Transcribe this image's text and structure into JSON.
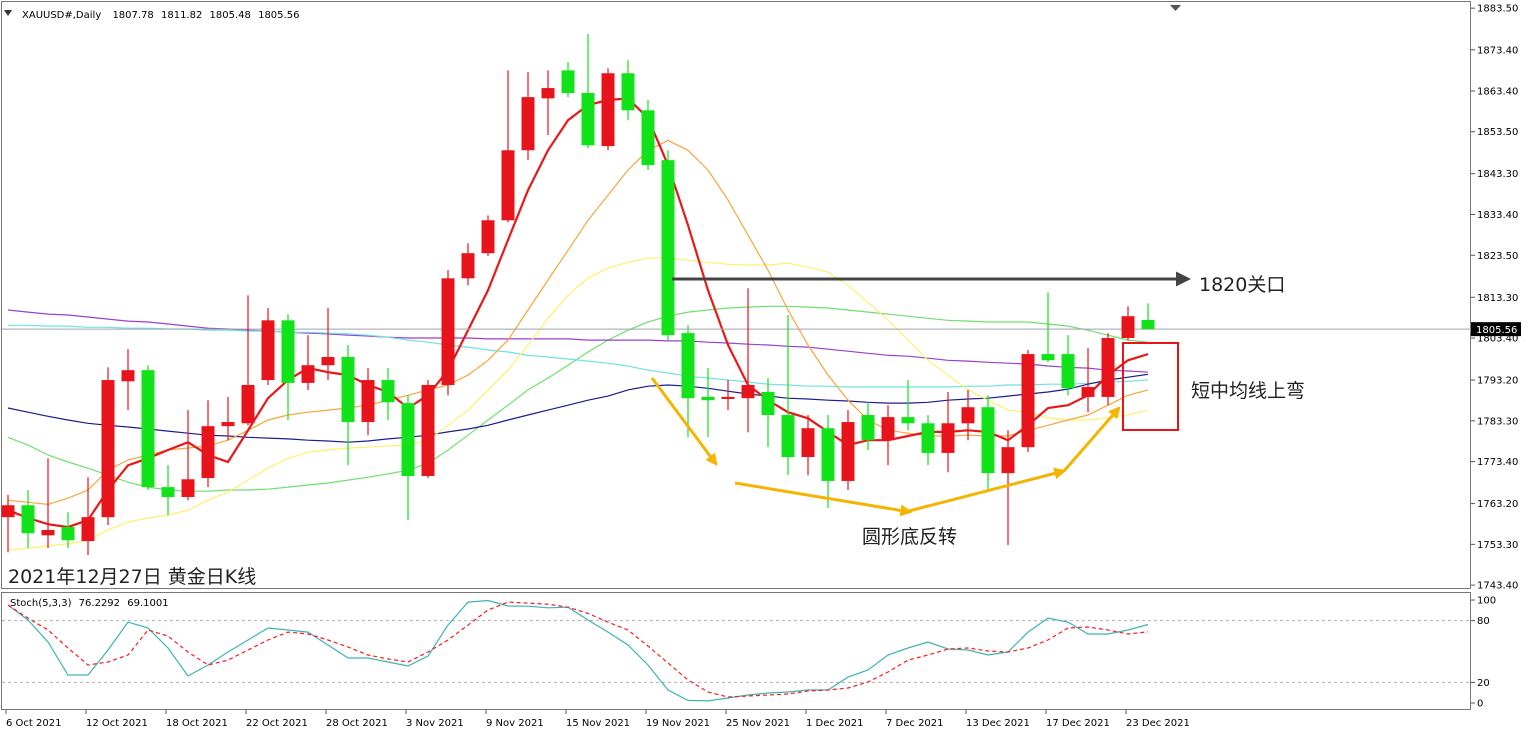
{
  "chart_data": {
    "type": "candlestick",
    "title": "XAUUSD#,Daily",
    "caption": "2021年12月27日 黄金日K线",
    "categories": [
      "6 Oct 2021",
      null,
      null,
      null,
      "12 Oct 2021",
      null,
      null,
      null,
      "18 Oct 2021",
      null,
      null,
      null,
      "22 Oct 2021",
      null,
      null,
      null,
      "28 Oct 2021",
      null,
      null,
      null,
      "3 Nov 2021",
      null,
      null,
      null,
      "9 Nov 2021",
      null,
      null,
      null,
      "15 Nov 2021",
      null,
      null,
      null,
      "19 Nov 2021",
      null,
      null,
      null,
      "25 Nov 2021",
      null,
      null,
      null,
      "1 Dec 2021",
      null,
      null,
      null,
      "7 Dec 2021",
      null,
      null,
      null,
      "13 Dec 2021",
      null,
      null,
      null,
      "17 Dec 2021",
      null,
      null,
      null,
      "23 Dec 2021",
      null
    ],
    "open": [
      1759.9,
      1762.8,
      1755.5,
      1757.5,
      1754.1,
      1759.9,
      1792.9,
      1795.6,
      1767.2,
      1764.8,
      1769.4,
      1782.0,
      1782.7,
      1793.2,
      1807.7,
      1792.5,
      1796.8,
      1798.8,
      1783.0,
      1793.2,
      1787.6,
      1769.9,
      1792.0,
      1817.9,
      1824.0,
      1832.0,
      1849.0,
      1861.6,
      1868.4,
      1862.9,
      1850.0,
      1867.7,
      1858.7,
      1846.6,
      1804.6,
      1789.1,
      1788.6,
      1788.8,
      1790.3,
      1784.7,
      1774.5,
      1781.5,
      1768.7,
      1784.7,
      1778.6,
      1784.2,
      1782.7,
      1775.5,
      1782.7,
      1786.6,
      1770.6,
      1776.9,
      1799.5,
      1799.5,
      1789.1,
      1789.1,
      1803.4,
      1807.78
    ],
    "high": [
      1765.3,
      1766.5,
      1774.2,
      1761.1,
      1769.6,
      1796.3,
      1800.7,
      1796.8,
      1772.5,
      1785.9,
      1788.3,
      1789.1,
      1813.8,
      1810.7,
      1809.2,
      1804.1,
      1810.7,
      1801.7,
      1796.1,
      1796.1,
      1789.5,
      1793.2,
      1819.9,
      1826.4,
      1833.2,
      1868.4,
      1868.0,
      1868.4,
      1870.4,
      1877.2,
      1868.9,
      1870.9,
      1861.2,
      1849.0,
      1806.5,
      1796.1,
      1793.2,
      1815.5,
      1793.7,
      1809.0,
      1784.7,
      1784.7,
      1785.9,
      1787.8,
      1787.1,
      1793.2,
      1784.7,
      1790.3,
      1790.8,
      1789.5,
      1781.0,
      1800.5,
      1814.5,
      1804.1,
      1801.0,
      1804.6,
      1811.1,
      1811.82
    ],
    "low": [
      1751.4,
      1752.4,
      1752.4,
      1752.4,
      1750.7,
      1758.0,
      1785.9,
      1766.5,
      1760.4,
      1764.0,
      1767.2,
      1778.6,
      1782.2,
      1792.0,
      1783.5,
      1790.8,
      1793.2,
      1772.5,
      1779.8,
      1783.5,
      1759.2,
      1769.4,
      1789.5,
      1816.2,
      1823.3,
      1831.5,
      1846.6,
      1852.7,
      1861.9,
      1849.5,
      1849.0,
      1856.3,
      1844.2,
      1802.9,
      1779.3,
      1779.3,
      1785.9,
      1780.5,
      1776.9,
      1770.1,
      1770.1,
      1762.1,
      1766.5,
      1776.2,
      1772.5,
      1781.0,
      1772.5,
      1770.8,
      1778.6,
      1766.5,
      1753.1,
      1775.7,
      1797.5,
      1789.5,
      1785.4,
      1787.1,
      1802.9,
      1805.48
    ],
    "close": [
      1762.8,
      1756.0,
      1756.8,
      1754.3,
      1759.9,
      1793.2,
      1795.6,
      1767.2,
      1764.8,
      1769.1,
      1782.0,
      1783.0,
      1792.0,
      1807.7,
      1792.5,
      1796.8,
      1798.8,
      1783.0,
      1793.2,
      1787.8,
      1769.9,
      1792.0,
      1817.9,
      1824.0,
      1832.0,
      1849.0,
      1861.9,
      1864.1,
      1862.9,
      1850.2,
      1867.7,
      1858.7,
      1845.4,
      1804.1,
      1788.8,
      1788.3,
      1789.1,
      1792.0,
      1784.7,
      1774.5,
      1781.5,
      1768.7,
      1783.0,
      1778.6,
      1784.2,
      1782.7,
      1775.5,
      1782.7,
      1786.6,
      1770.6,
      1776.9,
      1799.5,
      1798.0,
      1791.2,
      1791.5,
      1803.4,
      1808.7,
      1805.56
    ],
    "up_color": "#e8141b",
    "down_color": "#12e21a",
    "ylim": [
      1742.7,
      1885.0
    ],
    "yticks": [
      {
        "value": 1883.5,
        "label": "1883.50"
      },
      {
        "value": 1873.4,
        "label": "1873.40"
      },
      {
        "value": 1863.4,
        "label": "1863.40"
      },
      {
        "value": 1853.5,
        "label": "1853.50"
      },
      {
        "value": 1843.3,
        "label": "1843.30"
      },
      {
        "value": 1833.4,
        "label": "1833.40"
      },
      {
        "value": 1823.5,
        "label": "1823.50"
      },
      {
        "value": 1813.3,
        "label": "1813.30"
      },
      {
        "value": 1803.4,
        "label": "1803.40"
      },
      {
        "value": 1793.2,
        "label": "1793.20"
      },
      {
        "value": 1783.3,
        "label": "1783.30"
      },
      {
        "value": 1773.4,
        "label": "1773.40"
      },
      {
        "value": 1763.2,
        "label": "1763.20"
      },
      {
        "value": 1753.3,
        "label": "1753.30"
      },
      {
        "value": 1743.4,
        "label": "1743.40"
      }
    ],
    "moving_averages": [
      {
        "color": "#6fe06f",
        "values": [
          1779.3,
          1777.4,
          1775.0,
          1773.3,
          1771.8,
          1770.1,
          1768.4,
          1767.2,
          1766.5,
          1766.2,
          1766.2,
          1766.5,
          1766.5,
          1766.7,
          1767.2,
          1767.7,
          1768.2,
          1768.9,
          1769.6,
          1770.4,
          1771.3,
          1773.0,
          1776.2,
          1779.8,
          1783.5,
          1787.1,
          1790.8,
          1793.7,
          1796.8,
          1800.0,
          1802.9,
          1805.3,
          1807.3,
          1808.7,
          1809.7,
          1810.2,
          1810.7,
          1810.9,
          1811.1,
          1811.1,
          1810.9,
          1810.7,
          1810.2,
          1809.7,
          1809.2,
          1808.7,
          1808.2,
          1807.7,
          1807.5,
          1807.3,
          1807.3,
          1807.3,
          1806.8,
          1806.3,
          1805.3,
          1804.1,
          1802.9,
          1802.4
        ]
      },
      {
        "color": "#9b3fcf",
        "values": [
          1810.2,
          1809.7,
          1809.2,
          1809.0,
          1808.5,
          1808.0,
          1807.5,
          1807.3,
          1806.8,
          1806.3,
          1805.8,
          1805.6,
          1805.3,
          1805.1,
          1804.8,
          1804.6,
          1804.4,
          1804.1,
          1803.9,
          1803.6,
          1803.4,
          1803.4,
          1803.4,
          1803.4,
          1803.2,
          1803.2,
          1803.2,
          1803.2,
          1803.2,
          1802.9,
          1802.9,
          1802.9,
          1802.9,
          1802.7,
          1802.7,
          1802.4,
          1802.2,
          1801.9,
          1801.7,
          1801.4,
          1801.2,
          1800.7,
          1800.2,
          1799.7,
          1799.2,
          1799.0,
          1798.5,
          1798.0,
          1797.8,
          1797.5,
          1797.3,
          1797.1,
          1796.6,
          1796.3,
          1796.1,
          1795.6,
          1795.4,
          1795.1
        ]
      },
      {
        "color": "#6fe2e2",
        "values": [
          1806.5,
          1806.5,
          1806.3,
          1806.3,
          1806.0,
          1806.0,
          1805.8,
          1805.8,
          1805.6,
          1805.6,
          1805.3,
          1805.3,
          1805.1,
          1805.1,
          1804.8,
          1804.8,
          1804.6,
          1804.4,
          1804.1,
          1803.6,
          1802.9,
          1802.4,
          1801.7,
          1801.2,
          1800.5,
          1800.0,
          1799.2,
          1798.8,
          1798.3,
          1797.8,
          1797.3,
          1796.6,
          1795.6,
          1794.9,
          1794.1,
          1793.7,
          1793.2,
          1792.7,
          1792.2,
          1792.0,
          1791.7,
          1791.7,
          1791.5,
          1791.5,
          1791.5,
          1791.5,
          1791.5,
          1791.5,
          1791.7,
          1791.7,
          1792.0,
          1792.0,
          1792.2,
          1792.2,
          1792.4,
          1792.7,
          1792.9,
          1793.2
        ]
      },
      {
        "color": "#1c1c8f",
        "values": [
          1786.4,
          1785.4,
          1784.4,
          1783.5,
          1782.7,
          1782.2,
          1781.8,
          1781.3,
          1780.8,
          1780.3,
          1779.8,
          1779.6,
          1779.3,
          1779.1,
          1778.9,
          1778.6,
          1778.4,
          1778.1,
          1778.4,
          1778.9,
          1779.3,
          1779.8,
          1780.6,
          1781.3,
          1782.2,
          1783.5,
          1784.7,
          1785.9,
          1787.1,
          1788.3,
          1789.3,
          1790.8,
          1791.7,
          1792.0,
          1791.7,
          1791.2,
          1790.5,
          1789.8,
          1789.3,
          1788.8,
          1788.6,
          1788.3,
          1788.1,
          1787.8,
          1787.6,
          1787.6,
          1787.8,
          1788.3,
          1788.6,
          1788.8,
          1789.3,
          1789.8,
          1790.3,
          1791.0,
          1792.2,
          1793.2,
          1793.9,
          1794.6
        ]
      },
      {
        "color": "#fff06a",
        "values": [
          1751.9,
          1752.4,
          1752.9,
          1753.4,
          1754.3,
          1756.8,
          1758.7,
          1759.7,
          1760.4,
          1761.6,
          1764.0,
          1766.0,
          1768.9,
          1771.8,
          1774.2,
          1775.7,
          1776.2,
          1776.7,
          1776.9,
          1777.2,
          1777.4,
          1778.6,
          1782.2,
          1785.9,
          1790.8,
          1795.6,
          1801.7,
          1808.2,
          1813.8,
          1818.0,
          1820.4,
          1821.8,
          1822.8,
          1822.8,
          1822.3,
          1821.8,
          1821.3,
          1821.1,
          1821.1,
          1821.6,
          1820.6,
          1819.4,
          1816.2,
          1812.1,
          1807.7,
          1802.9,
          1798.0,
          1794.4,
          1790.8,
          1788.3,
          1785.9,
          1785.4,
          1784.0,
          1783.5,
          1783.5,
          1784.0,
          1784.7,
          1785.9
        ]
      },
      {
        "color": "#f7a53c",
        "values": [
          1764.0,
          1763.5,
          1763.0,
          1764.5,
          1766.5,
          1771.3,
          1773.8,
          1775.0,
          1776.2,
          1776.7,
          1777.2,
          1778.6,
          1781.0,
          1783.5,
          1784.7,
          1785.4,
          1785.9,
          1786.4,
          1787.1,
          1788.3,
          1789.5,
          1790.8,
          1792.0,
          1794.4,
          1798.0,
          1802.9,
          1810.2,
          1817.5,
          1824.7,
          1832.0,
          1838.1,
          1844.2,
          1849.0,
          1851.4,
          1849.0,
          1844.2,
          1836.9,
          1828.4,
          1819.9,
          1810.2,
          1801.7,
          1794.4,
          1788.3,
          1783.5,
          1781.0,
          1780.3,
          1779.6,
          1779.6,
          1779.8,
          1779.6,
          1779.6,
          1781.0,
          1782.2,
          1783.5,
          1784.7,
          1787.1,
          1789.5,
          1790.8
        ]
      },
      {
        "color": "#e81818",
        "values": [
          1761.6,
          1759.7,
          1758.2,
          1757.5,
          1759.2,
          1766.5,
          1772.5,
          1774.2,
          1776.2,
          1778.1,
          1775.0,
          1773.3,
          1781.0,
          1788.8,
          1793.2,
          1796.1,
          1795.1,
          1794.4,
          1792.0,
          1790.3,
          1786.4,
          1789.5,
          1795.6,
          1805.3,
          1815.0,
          1827.2,
          1839.3,
          1849.0,
          1856.3,
          1860.0,
          1861.2,
          1861.6,
          1856.8,
          1845.4,
          1830.8,
          1815.0,
          1801.7,
          1792.0,
          1788.3,
          1785.4,
          1783.9,
          1780.6,
          1777.4,
          1778.6,
          1778.6,
          1779.6,
          1780.6,
          1780.6,
          1781.0,
          1780.6,
          1778.6,
          1782.2,
          1786.4,
          1787.1,
          1789.5,
          1794.4,
          1798.0,
          1799.5
        ]
      }
    ],
    "annotations": [
      "1820关口",
      "短中均线上弯",
      "圆形底反转"
    ],
    "indicator": {
      "type": "line",
      "title": "Stoch(5,3,3)",
      "ylim": [
        -6.8,
        107.8
      ],
      "yticks": [
        100,
        80,
        20,
        0
      ],
      "levels": [
        80,
        20
      ],
      "series": [
        {
          "color": "#3fb3b3",
          "values": [
            95.1,
            80.6,
            59.2,
            27.2,
            27.2,
            51.5,
            78.6,
            72.8,
            53.4,
            26.2,
            36.9,
            49.5,
            61.2,
            72.8,
            70.9,
            68.9,
            56.3,
            43.7,
            43.7,
            39.8,
            35.9,
            45.6,
            75.7,
            98.0,
            99.5,
            94.2,
            94.0,
            92.5,
            93.0,
            80.6,
            68.9,
            56.3,
            36.9,
            12.6,
            2.5,
            2.0,
            4.9,
            7.8,
            9.7,
            10.7,
            12.6,
            12.6,
            25.2,
            32.0,
            46.6,
            53.4,
            59.2,
            52.4,
            51.5,
            46.6,
            49.5,
            68.9,
            82.5,
            78.6,
            67.0,
            67.0,
            70.9,
            76.2292
          ]
        },
        {
          "color": "#ff1a1a",
          "dashed": true,
          "values": [
            95.1,
            82.5,
            70.9,
            53.4,
            36.9,
            39.8,
            46.6,
            70.9,
            65.0,
            49.5,
            36.9,
            41.7,
            51.5,
            61.2,
            68.9,
            67.0,
            61.2,
            54.4,
            46.6,
            42.7,
            39.8,
            49.5,
            61.2,
            75.7,
            90.3,
            98.0,
            97.0,
            96.0,
            93.0,
            87.0,
            78.6,
            70.9,
            55.3,
            38.8,
            22.3,
            10.7,
            5.8,
            6.8,
            7.8,
            8.7,
            11.7,
            12.6,
            14.6,
            20.4,
            30.1,
            41.7,
            46.6,
            52.4,
            53.4,
            50.5,
            49.5,
            53.4,
            61.2,
            72.8,
            73.8,
            70.9,
            67.0,
            69.1001
          ]
        }
      ]
    }
  }
}
